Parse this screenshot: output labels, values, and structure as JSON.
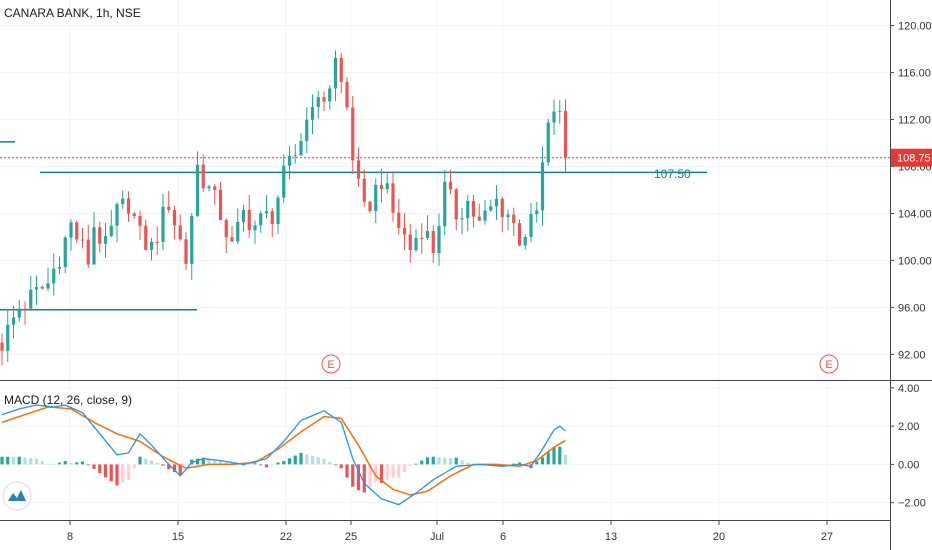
{
  "chart_data": [
    {
      "type": "candlestick",
      "title": "CANARA BANK, 1h, NSE",
      "x_ticks": [
        "8",
        "15",
        "22",
        "25",
        "Jul",
        "6",
        "13",
        "20",
        "27"
      ],
      "y_ticks": [
        "120.00",
        "116.00",
        "112.00",
        "108.00",
        "104.00",
        "100.00",
        "96.00",
        "92.00"
      ],
      "ylim": [
        90.5,
        121.5
      ],
      "price_labels": {
        "last": "108.75",
        "level": "107.50"
      },
      "levels": [
        {
          "kind": "resistance",
          "value": 107.5
        },
        {
          "kind": "support",
          "value": 95.8
        },
        {
          "kind": "earlier-level",
          "value": 110.1
        }
      ],
      "earnings_markers": [
        "E",
        "E"
      ],
      "close_path": [
        [
          0,
          93
        ],
        [
          3,
          96
        ],
        [
          8,
          98
        ],
        [
          12,
          103
        ],
        [
          15,
          100
        ],
        [
          16,
          103
        ],
        [
          18,
          101
        ],
        [
          20,
          104
        ],
        [
          22,
          105
        ],
        [
          24,
          102
        ],
        [
          26,
          101
        ],
        [
          29,
          105
        ],
        [
          32,
          100
        ],
        [
          34,
          108
        ],
        [
          38,
          104
        ],
        [
          40,
          101
        ],
        [
          42,
          104
        ],
        [
          44,
          103
        ],
        [
          47,
          104
        ],
        [
          49,
          107
        ],
        [
          51,
          109
        ],
        [
          53,
          112
        ],
        [
          54,
          114
        ],
        [
          55,
          113
        ],
        [
          56,
          114
        ],
        [
          57,
          115
        ],
        [
          58,
          117
        ],
        [
          59,
          115
        ],
        [
          60,
          113
        ],
        [
          61,
          109
        ],
        [
          62,
          106
        ],
        [
          63,
          104
        ],
        [
          64,
          105
        ],
        [
          66,
          107
        ],
        [
          68,
          104
        ],
        [
          70,
          102
        ],
        [
          71,
          101
        ],
        [
          73,
          103
        ],
        [
          75,
          101
        ],
        [
          77,
          106
        ],
        [
          79,
          104
        ],
        [
          81,
          105
        ],
        [
          83,
          103
        ],
        [
          86,
          105
        ],
        [
          88,
          104
        ],
        [
          90,
          102
        ],
        [
          92,
          103
        ],
        [
          93,
          104
        ],
        [
          94,
          108
        ],
        [
          95,
          111
        ],
        [
          96,
          113
        ],
        [
          97,
          112
        ],
        [
          98,
          108.75
        ]
      ],
      "colors": {
        "up": "#26a69a",
        "down": "#ef5350",
        "level": "#138484",
        "last": "#e53935"
      }
    },
    {
      "type": "macd",
      "title": "MACD (12, 26, close, 9)",
      "y_ticks": [
        "4.00",
        "2.00",
        "0.00",
        "−2.00"
      ],
      "ylim": [
        -2.8,
        4.2
      ],
      "macd_path": [
        [
          0,
          2.6
        ],
        [
          3,
          2.9
        ],
        [
          6,
          3.1
        ],
        [
          9,
          3.0
        ],
        [
          11,
          3.1
        ],
        [
          14,
          2.7
        ],
        [
          17,
          1.6
        ],
        [
          20,
          0.5
        ],
        [
          22,
          0.6
        ],
        [
          24,
          1.6
        ],
        [
          26,
          1.0
        ],
        [
          29,
          0.0
        ],
        [
          31,
          -0.6
        ],
        [
          33,
          0.1
        ],
        [
          35,
          0.3
        ],
        [
          38,
          0.2
        ],
        [
          42,
          0.0
        ],
        [
          46,
          0.3
        ],
        [
          49,
          1.2
        ],
        [
          52,
          2.3
        ],
        [
          56,
          2.8
        ],
        [
          59,
          2.2
        ],
        [
          61,
          0.3
        ],
        [
          63,
          -1.0
        ],
        [
          66,
          -1.8
        ],
        [
          69,
          -2.1
        ],
        [
          72,
          -1.5
        ],
        [
          75,
          -0.8
        ],
        [
          79,
          -0.1
        ],
        [
          83,
          0.0
        ],
        [
          87,
          -0.1
        ],
        [
          90,
          0.0
        ],
        [
          92,
          -0.1
        ],
        [
          94,
          0.8
        ],
        [
          96,
          1.8
        ],
        [
          97,
          2.0
        ],
        [
          98,
          1.75
        ]
      ],
      "signal_path": [
        [
          0,
          2.2
        ],
        [
          4,
          2.6
        ],
        [
          8,
          3.0
        ],
        [
          12,
          2.9
        ],
        [
          16,
          2.2
        ],
        [
          20,
          1.6
        ],
        [
          24,
          1.2
        ],
        [
          28,
          0.4
        ],
        [
          32,
          -0.2
        ],
        [
          36,
          0.0
        ],
        [
          40,
          0.0
        ],
        [
          44,
          0.1
        ],
        [
          48,
          0.8
        ],
        [
          52,
          1.7
        ],
        [
          56,
          2.5
        ],
        [
          59,
          2.4
        ],
        [
          62,
          1.0
        ],
        [
          65,
          -0.6
        ],
        [
          68,
          -1.3
        ],
        [
          71,
          -1.6
        ],
        [
          74,
          -1.4
        ],
        [
          78,
          -0.6
        ],
        [
          82,
          0.0
        ],
        [
          86,
          0.0
        ],
        [
          90,
          -0.1
        ],
        [
          93,
          0.2
        ],
        [
          96,
          0.9
        ],
        [
          98,
          1.25
        ]
      ],
      "colors": {
        "macd": "#2196f3",
        "signal": "#ff6d00",
        "hist_up": "#26a69a",
        "hist_down": "#ef5350"
      }
    }
  ]
}
